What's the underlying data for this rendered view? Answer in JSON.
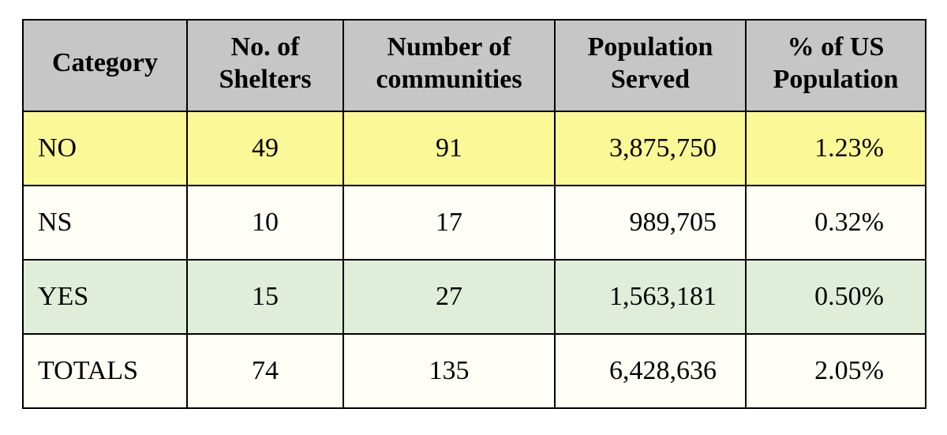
{
  "table": {
    "header_bg": "#c6c6c6",
    "columns": [
      {
        "label": "Category"
      },
      {
        "label": "No. of Shelters"
      },
      {
        "label": "Number of communities"
      },
      {
        "label": "Population Served"
      },
      {
        "label": "% of US Population"
      }
    ],
    "rows": [
      {
        "bg": "#fbf897",
        "category": "NO",
        "shelters": "49",
        "communities": "91",
        "population": "3,875,750",
        "pct": "1.23%"
      },
      {
        "bg": "#fffef7",
        "category": "NS",
        "shelters": "10",
        "communities": "17",
        "population": "989,705",
        "pct": "0.32%"
      },
      {
        "bg": "#e0eed9",
        "category": "YES",
        "shelters": "15",
        "communities": "27",
        "population": "1,563,181",
        "pct": "0.50%"
      },
      {
        "bg": "#fffef7",
        "category": "TOTALS",
        "shelters": "74",
        "communities": "135",
        "population": "6,428,636",
        "pct": "2.05%"
      }
    ]
  }
}
